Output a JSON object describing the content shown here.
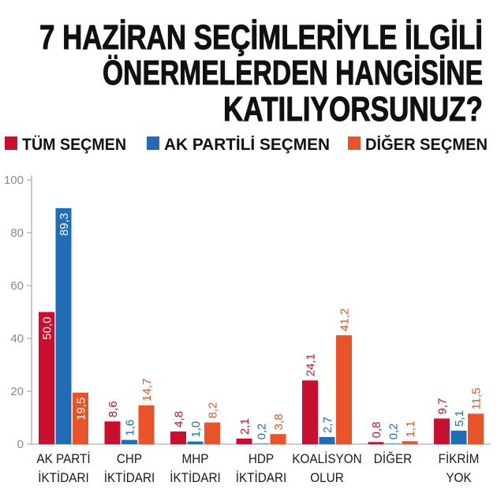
{
  "chart_data": {
    "type": "bar",
    "title_lines": [
      "7 HAZİRAN SEÇİMLERİYLE İLGİLİ",
      "ÖNERMELERDEN HANGİSİNE",
      "KATILIYORSUNUZ?"
    ],
    "categories": [
      [
        "AK PARTİ",
        "İKTİDARI"
      ],
      [
        "CHP",
        "İKTİDARI"
      ],
      [
        "MHP",
        "İKTİDARI"
      ],
      [
        "HDP",
        "İKTİDARI"
      ],
      [
        "KOALİSYON",
        "OLUR"
      ],
      [
        "DİĞER"
      ],
      [
        "FİKRİM",
        "YOK"
      ]
    ],
    "series": [
      {
        "name": "TÜM SEÇMEN",
        "color": "#c8102e",
        "values": [
          50.0,
          8.6,
          4.8,
          2.1,
          24.1,
          0.8,
          9.7
        ],
        "labels": [
          "50,0",
          "8,6",
          "4,8",
          "2,1",
          "24,1",
          "0,8",
          "9,7"
        ]
      },
      {
        "name": "AK PARTİLİ SEÇMEN",
        "color": "#1f6db4",
        "values": [
          89.3,
          1.6,
          1.0,
          0.2,
          2.7,
          0.2,
          5.1
        ],
        "labels": [
          "89,3",
          "1,6",
          "1,0",
          "0,2",
          "2,7",
          "0,2",
          "5,1"
        ]
      },
      {
        "name": "DİĞER SEÇMEN",
        "color": "#e8532a",
        "values": [
          19.5,
          14.7,
          8.2,
          3.8,
          41.2,
          1.1,
          11.5
        ],
        "labels": [
          "19,5",
          "14,7",
          "8,2",
          "3,8",
          "41,2",
          "1,1",
          "11,5"
        ]
      }
    ],
    "ylim": [
      0,
      100
    ],
    "yticks": [
      0,
      20,
      40,
      60,
      80,
      100
    ],
    "legend": "top-left",
    "grid": false
  }
}
